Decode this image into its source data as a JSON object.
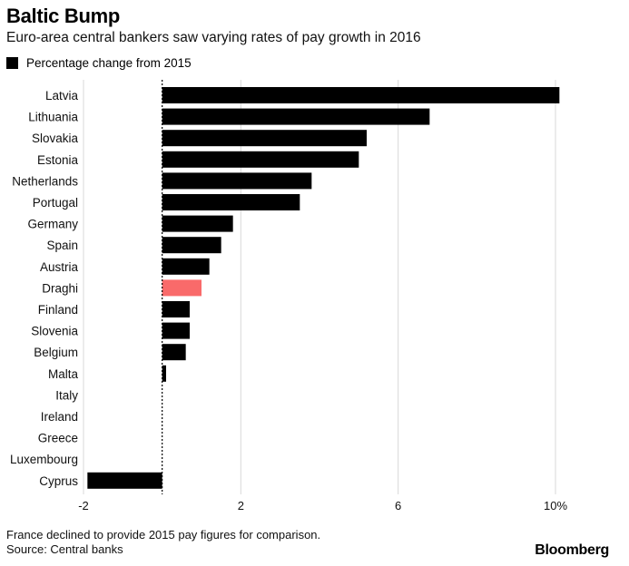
{
  "header": {
    "title": "Baltic Bump",
    "subtitle": "Euro-area central bankers saw varying rates of pay growth in 2016"
  },
  "legend": {
    "label": "Percentage change from 2015"
  },
  "footer": {
    "note": "France declined to provide 2015 pay figures for comparison.",
    "source": "Source: Central banks",
    "logo": "Bloomberg"
  },
  "colors": {
    "bar": "#000000",
    "highlight": "#f96a6a",
    "grid": "#d9d9d9"
  },
  "chart_data": {
    "type": "bar",
    "orientation": "horizontal",
    "title": "Baltic Bump",
    "subtitle": "Euro-area central bankers saw varying rates of pay growth in 2016",
    "xlim": [
      -2,
      10
    ],
    "xticks": [
      -2,
      2,
      6,
      10
    ],
    "xtick_labels": [
      "-2",
      "2",
      "6",
      "10%"
    ],
    "grid": true,
    "legend_position": "top-left",
    "highlight_category": "Draghi",
    "series": [
      {
        "name": "Percentage change from 2015",
        "categories": [
          "Latvia",
          "Lithuania",
          "Slovakia",
          "Estonia",
          "Netherlands",
          "Portugal",
          "Germany",
          "Spain",
          "Austria",
          "Draghi",
          "Finland",
          "Slovenia",
          "Belgium",
          "Malta",
          "Italy",
          "Ireland",
          "Greece",
          "Luxembourg",
          "Cyprus"
        ],
        "values": [
          10.1,
          6.8,
          5.2,
          5.0,
          3.8,
          3.5,
          1.8,
          1.5,
          1.2,
          1.0,
          0.7,
          0.7,
          0.6,
          0.1,
          0,
          0,
          0,
          0,
          -1.9
        ]
      }
    ]
  }
}
